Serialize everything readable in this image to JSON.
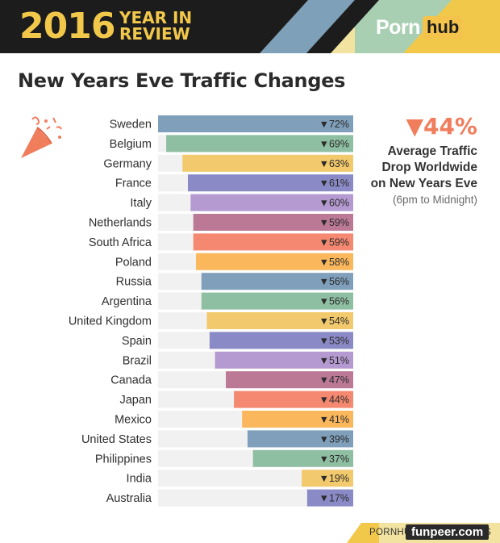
{
  "header": {
    "year": "2016",
    "year_in": "YEAR IN",
    "review": "REVIEW",
    "logo_left": "Porn",
    "logo_right": "hub"
  },
  "title": "New Years Eve Traffic Changes",
  "stat": {
    "value": "▼44%",
    "caption_line1": "Average Traffic",
    "caption_line2": "Drop Worldwide",
    "caption_line3": "on New Years Eve",
    "subcaption": "(6pm to Midnight)"
  },
  "footer": {
    "url": "PORNHUB.COM/INSIGHTS",
    "watermark": "funpeer.com"
  },
  "colors": {
    "accent": "#f07d5c",
    "header_bg": "#1c1c1c",
    "gold": "#f2c84b",
    "track": "#f1f1f1"
  },
  "chart_data": {
    "type": "bar",
    "orientation": "horizontal",
    "unit": "%",
    "xlim": [
      0,
      72
    ],
    "categories": [
      "Sweden",
      "Belgium",
      "Germany",
      "France",
      "Italy",
      "Netherlands",
      "South Africa",
      "Poland",
      "Russia",
      "Argentina",
      "United Kingdom",
      "Spain",
      "Brazil",
      "Canada",
      "Japan",
      "Mexico",
      "United States",
      "Philippines",
      "India",
      "Australia"
    ],
    "values": [
      72,
      69,
      63,
      61,
      60,
      59,
      59,
      58,
      56,
      56,
      54,
      53,
      51,
      47,
      44,
      41,
      39,
      37,
      19,
      17
    ],
    "labels": [
      "▼72%",
      "▼69%",
      "▼63%",
      "▼61%",
      "▼60%",
      "▼59%",
      "▼59%",
      "▼58%",
      "▼56%",
      "▼56%",
      "▼54%",
      "▼53%",
      "▼51%",
      "▼47%",
      "▼44%",
      "▼41%",
      "▼39%",
      "▼37%",
      "▼19%",
      "▼17%"
    ],
    "bar_colors": [
      "#7f9fba",
      "#8fbfa2",
      "#f2c96c",
      "#8a8ac6",
      "#b49ad0",
      "#bb7996",
      "#f48870",
      "#fbb75c",
      "#7f9fba",
      "#8fbfa2",
      "#f2c96c",
      "#8a8ac6",
      "#b49ad0",
      "#bb7996",
      "#f48870",
      "#fbb75c",
      "#7f9fba",
      "#8fbfa2",
      "#f2c96c",
      "#8a8ac6"
    ],
    "grid": false,
    "legend": "none"
  }
}
